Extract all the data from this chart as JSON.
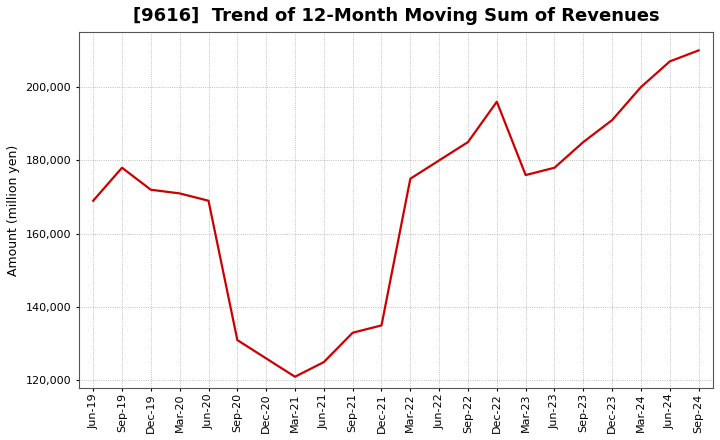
{
  "title": "[9616]  Trend of 12-Month Moving Sum of Revenues",
  "ylabel": "Amount (million yen)",
  "line_color": "#cc0000",
  "background_color": "#ffffff",
  "plot_bg_color": "#ffffff",
  "grid_color": "#888888",
  "x_labels": [
    "Jun-19",
    "Sep-19",
    "Dec-19",
    "Mar-20",
    "Jun-20",
    "Sep-20",
    "Dec-20",
    "Mar-21",
    "Jun-21",
    "Sep-21",
    "Dec-21",
    "Mar-22",
    "Jun-22",
    "Sep-22",
    "Dec-22",
    "Mar-23",
    "Jun-23",
    "Sep-23",
    "Dec-23",
    "Mar-24",
    "Jun-24",
    "Sep-24"
  ],
  "y_values": [
    169000,
    178000,
    172000,
    171000,
    169000,
    131000,
    126000,
    121000,
    125000,
    133000,
    135000,
    175000,
    180000,
    185000,
    196000,
    176000,
    178000,
    185000,
    191000,
    200000,
    207000,
    210000
  ],
  "ylim": [
    118000,
    215000
  ],
  "yticks": [
    120000,
    140000,
    160000,
    180000,
    200000
  ],
  "title_fontsize": 13,
  "label_fontsize": 9,
  "tick_fontsize": 8
}
